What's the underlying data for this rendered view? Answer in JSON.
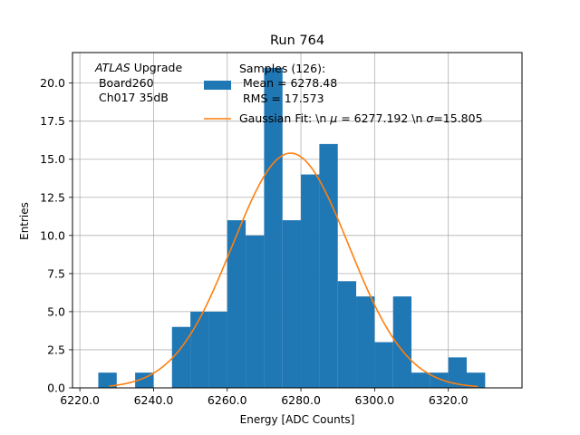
{
  "chart_data": {
    "type": "bar",
    "title": "Run 764",
    "xlabel": "Energy [ADC Counts]",
    "ylabel": "Entries",
    "xlim": [
      6218.0,
      6340.0
    ],
    "ylim": [
      0,
      22.0
    ],
    "grid": true,
    "xticks": [
      6220.0,
      6240.0,
      6260.0,
      6280.0,
      6300.0,
      6320.0
    ],
    "xtick_labels": [
      "6220.0",
      "6240.0",
      "6260.0",
      "6280.0",
      "6300.0",
      "6320.0"
    ],
    "yticks": [
      0.0,
      2.5,
      5.0,
      7.5,
      10.0,
      12.5,
      15.0,
      17.5,
      20.0
    ],
    "ytick_labels": [
      "0.0",
      "2.5",
      "5.0",
      "7.5",
      "10.0",
      "12.5",
      "15.0",
      "17.5",
      "20.0"
    ],
    "bins": [
      {
        "x0": 6225,
        "x1": 6230,
        "count": 1
      },
      {
        "x0": 6230,
        "x1": 6235,
        "count": 0
      },
      {
        "x0": 6235,
        "x1": 6240,
        "count": 1
      },
      {
        "x0": 6240,
        "x1": 6245,
        "count": 0
      },
      {
        "x0": 6245,
        "x1": 6250,
        "count": 4
      },
      {
        "x0": 6250,
        "x1": 6255,
        "count": 5
      },
      {
        "x0": 6255,
        "x1": 6260,
        "count": 5
      },
      {
        "x0": 6260,
        "x1": 6265,
        "count": 11
      },
      {
        "x0": 6265,
        "x1": 6270,
        "count": 10
      },
      {
        "x0": 6270,
        "x1": 6275,
        "count": 21
      },
      {
        "x0": 6275,
        "x1": 6280,
        "count": 11
      },
      {
        "x0": 6280,
        "x1": 6285,
        "count": 14
      },
      {
        "x0": 6285,
        "x1": 6290,
        "count": 16
      },
      {
        "x0": 6290,
        "x1": 6295,
        "count": 7
      },
      {
        "x0": 6295,
        "x1": 6300,
        "count": 6
      },
      {
        "x0": 6300,
        "x1": 6305,
        "count": 3
      },
      {
        "x0": 6305,
        "x1": 6310,
        "count": 6
      },
      {
        "x0": 6310,
        "x1": 6315,
        "count": 1
      },
      {
        "x0": 6315,
        "x1": 6320,
        "count": 1
      },
      {
        "x0": 6320,
        "x1": 6325,
        "count": 2
      },
      {
        "x0": 6325,
        "x1": 6330,
        "count": 1
      }
    ],
    "fit": {
      "name": "Gaussian Fit",
      "mu": 6277.192,
      "sigma": 15.805,
      "amplitude": 15.4,
      "x_range": [
        6228,
        6328
      ]
    },
    "colors": {
      "bars": "#1f77b4",
      "fit": "#ff7f0e",
      "grid": "#b0b0b0"
    },
    "annotation": {
      "italic": "ATLAS",
      "line1_rest": " Upgrade",
      "line2": " Board260",
      "line3": " Ch017 35dB"
    },
    "legend": {
      "placement": "top-right",
      "hist_line1": "Samples (126):",
      "hist_line2": " Mean = 6278.48",
      "hist_line3": " RMS = 17.573",
      "fit_prefix": "Gaussian Fit: \\n ",
      "fit_mu_sym": "μ",
      "fit_mid": " = 6277.192 \\n ",
      "fit_sigma_sym": "σ",
      "fit_end": "=15.805"
    }
  }
}
